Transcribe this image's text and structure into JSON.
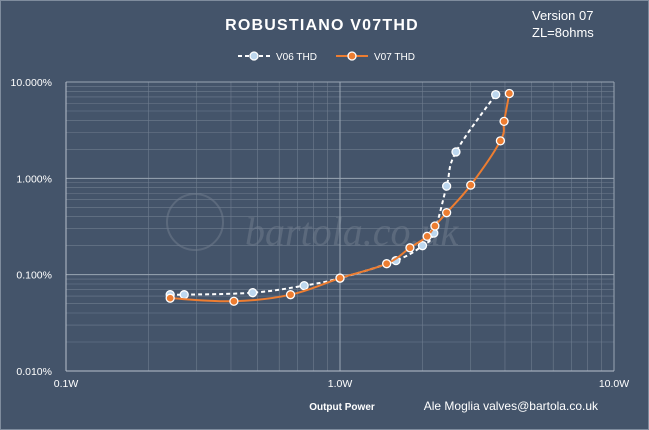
{
  "chart_data": {
    "type": "line",
    "title": "ROBUSTIANO  V07THD",
    "version_note": [
      "Version 07",
      "ZL=8ohms"
    ],
    "xlabel": "Output Power",
    "ylabel": "",
    "credit": "Ale Moglia valves@bartola.co.uk",
    "x_scale": "log",
    "y_scale": "log",
    "xlim": [
      0.1,
      10
    ],
    "ylim": [
      0.01,
      10
    ],
    "x_ticks": [
      {
        "value": 0.1,
        "label": "0.1W"
      },
      {
        "value": 1,
        "label": "1.0W"
      },
      {
        "value": 10,
        "label": "10.0W"
      }
    ],
    "y_ticks": [
      {
        "value": 10,
        "label": "10.000%"
      },
      {
        "value": 1,
        "label": "1.000%"
      },
      {
        "value": 0.1,
        "label": "0.100%"
      },
      {
        "value": 0.01,
        "label": "0.010%"
      }
    ],
    "grid": true,
    "legend_position": "top-center",
    "series": [
      {
        "name": "V06 THD",
        "color": "#bdd7ee",
        "line_color": "#ffffff",
        "dashed": true,
        "x": [
          0.24,
          0.27,
          0.48,
          0.74,
          1.0,
          1.6,
          2.0,
          2.2,
          2.45,
          2.65,
          3.7
        ],
        "y": [
          0.062,
          0.062,
          0.065,
          0.077,
          0.092,
          0.14,
          0.2,
          0.27,
          0.83,
          1.88,
          7.4
        ]
      },
      {
        "name": "V07 THD",
        "color": "#ed7d31",
        "line_color": "#ed7d31",
        "dashed": false,
        "x": [
          0.24,
          0.41,
          0.66,
          1.0,
          1.48,
          1.8,
          2.08,
          2.22,
          2.45,
          3.0,
          3.85,
          3.97,
          4.15
        ],
        "y": [
          0.057,
          0.053,
          0.062,
          0.092,
          0.13,
          0.19,
          0.25,
          0.32,
          0.44,
          0.85,
          2.45,
          3.9,
          7.6
        ]
      }
    ]
  }
}
